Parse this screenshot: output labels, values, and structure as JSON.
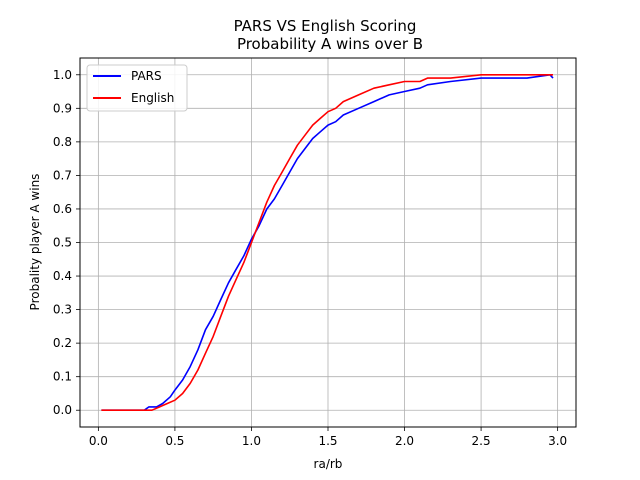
{
  "chart_data": {
    "type": "line",
    "title": "PARS VS English Scoring",
    "subtitle": "Probability A wins over B",
    "xlabel": "ra/rb",
    "ylabel": "Probality player A wins",
    "xlim": [
      -0.12,
      3.12
    ],
    "ylim": [
      -0.05,
      1.05
    ],
    "x_ticks": [
      0.0,
      0.5,
      1.0,
      1.5,
      2.0,
      2.5,
      3.0
    ],
    "x_tick_labels": [
      "0.0",
      "0.5",
      "1.0",
      "1.5",
      "2.0",
      "2.5",
      "3.0"
    ],
    "y_ticks": [
      0.0,
      0.1,
      0.2,
      0.3,
      0.4,
      0.5,
      0.6,
      0.7,
      0.8,
      0.9,
      1.0
    ],
    "y_tick_labels": [
      "0.0",
      "0.1",
      "0.2",
      "0.3",
      "0.4",
      "0.5",
      "0.6",
      "0.7",
      "0.8",
      "0.9",
      "1.0"
    ],
    "grid": true,
    "legend_position": "top-left",
    "series": [
      {
        "name": "PARS",
        "color": "#0000ff",
        "points": [
          [
            0.02,
            0.0
          ],
          [
            0.3,
            0.0
          ],
          [
            0.33,
            0.01
          ],
          [
            0.38,
            0.01
          ],
          [
            0.42,
            0.02
          ],
          [
            0.47,
            0.04
          ],
          [
            0.5,
            0.06
          ],
          [
            0.55,
            0.09
          ],
          [
            0.6,
            0.13
          ],
          [
            0.65,
            0.18
          ],
          [
            0.7,
            0.24
          ],
          [
            0.75,
            0.28
          ],
          [
            0.8,
            0.33
          ],
          [
            0.85,
            0.38
          ],
          [
            0.9,
            0.42
          ],
          [
            0.95,
            0.46
          ],
          [
            1.0,
            0.51
          ],
          [
            1.05,
            0.55
          ],
          [
            1.1,
            0.6
          ],
          [
            1.15,
            0.63
          ],
          [
            1.2,
            0.67
          ],
          [
            1.25,
            0.71
          ],
          [
            1.3,
            0.75
          ],
          [
            1.35,
            0.78
          ],
          [
            1.4,
            0.81
          ],
          [
            1.45,
            0.83
          ],
          [
            1.5,
            0.85
          ],
          [
            1.55,
            0.86
          ],
          [
            1.6,
            0.88
          ],
          [
            1.7,
            0.9
          ],
          [
            1.8,
            0.92
          ],
          [
            1.9,
            0.94
          ],
          [
            2.0,
            0.95
          ],
          [
            2.1,
            0.96
          ],
          [
            2.15,
            0.97
          ],
          [
            2.3,
            0.98
          ],
          [
            2.5,
            0.99
          ],
          [
            2.7,
            0.99
          ],
          [
            2.8,
            0.99
          ],
          [
            2.95,
            1.0
          ],
          [
            2.97,
            0.99
          ]
        ]
      },
      {
        "name": "English",
        "color": "#ff0000",
        "points": [
          [
            0.02,
            0.0
          ],
          [
            0.35,
            0.0
          ],
          [
            0.4,
            0.01
          ],
          [
            0.45,
            0.02
          ],
          [
            0.5,
            0.03
          ],
          [
            0.55,
            0.05
          ],
          [
            0.6,
            0.08
          ],
          [
            0.65,
            0.12
          ],
          [
            0.7,
            0.17
          ],
          [
            0.75,
            0.22
          ],
          [
            0.8,
            0.28
          ],
          [
            0.85,
            0.34
          ],
          [
            0.9,
            0.39
          ],
          [
            0.95,
            0.44
          ],
          [
            1.0,
            0.5
          ],
          [
            1.05,
            0.56
          ],
          [
            1.1,
            0.62
          ],
          [
            1.15,
            0.67
          ],
          [
            1.2,
            0.71
          ],
          [
            1.25,
            0.75
          ],
          [
            1.3,
            0.79
          ],
          [
            1.35,
            0.82
          ],
          [
            1.4,
            0.85
          ],
          [
            1.45,
            0.87
          ],
          [
            1.5,
            0.89
          ],
          [
            1.55,
            0.9
          ],
          [
            1.6,
            0.92
          ],
          [
            1.7,
            0.94
          ],
          [
            1.8,
            0.96
          ],
          [
            1.9,
            0.97
          ],
          [
            2.0,
            0.98
          ],
          [
            2.1,
            0.98
          ],
          [
            2.15,
            0.99
          ],
          [
            2.3,
            0.99
          ],
          [
            2.5,
            1.0
          ],
          [
            2.97,
            1.0
          ]
        ]
      }
    ]
  }
}
